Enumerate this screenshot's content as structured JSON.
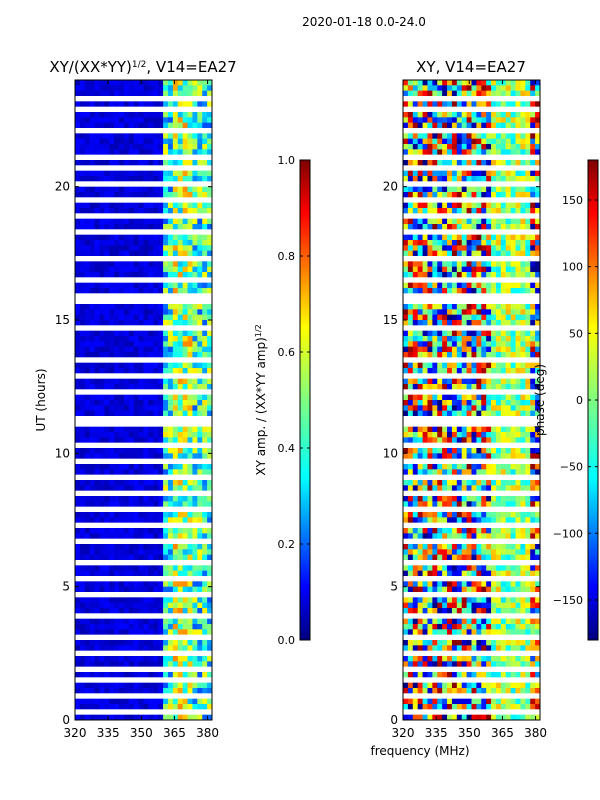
{
  "figure": {
    "suptitle": "2020-01-18 0.0-24.0",
    "xlabel": "frequency (MHz)",
    "colors": [
      "#00007f",
      "#0000ff",
      "#0080ff",
      "#00ffff",
      "#80ff80",
      "#ffff00",
      "#ff8000",
      "#ff0000",
      "#7f0000"
    ]
  },
  "chart_data": [
    {
      "type": "heatmap",
      "title_main": "XY/(XX*YY)",
      "title_sup": "1/2",
      "title_tail": ", V14=EA27",
      "title": "XY/(XX*YY)^1/2, V14=EA27",
      "xlabel": "frequency (MHz)",
      "ylabel": "UT (hours)",
      "xlim": [
        320,
        382
      ],
      "ylim": [
        0,
        24
      ],
      "xticks": [
        "320",
        "335",
        "350",
        "365",
        "380"
      ],
      "yticks": [
        "0",
        "5",
        "10",
        "15",
        "20"
      ],
      "xtick_values": [
        320,
        335,
        350,
        365,
        380
      ],
      "ytick_values": [
        0,
        5,
        10,
        15,
        20
      ],
      "colorbar": {
        "label_main": "XY amp. / (XX*YY amp)",
        "label_sup": "1/2",
        "range": [
          0.0,
          1.0
        ],
        "ticks": [
          "0.0",
          "0.2",
          "0.4",
          "0.6",
          "0.8",
          "1.0"
        ],
        "tick_values": [
          0.0,
          0.2,
          0.4,
          0.6,
          0.8,
          1.0
        ]
      }
    },
    {
      "type": "heatmap",
      "title": "XY, V14=EA27",
      "xlabel": "frequency (MHz)",
      "ylabel": "",
      "xlim": [
        320,
        382
      ],
      "ylim": [
        0,
        24
      ],
      "xticks": [
        "320",
        "335",
        "350",
        "365",
        "380"
      ],
      "yticks": [
        "0",
        "5",
        "10",
        "15",
        "20"
      ],
      "xtick_values": [
        320,
        335,
        350,
        365,
        380
      ],
      "ytick_values": [
        0,
        5,
        10,
        15,
        20
      ],
      "colorbar": {
        "label": "phase (deg)",
        "range": [
          -180,
          180
        ],
        "ticks": [
          "−150",
          "−100",
          "−50",
          "0",
          "50",
          "100",
          "150"
        ],
        "tick_values": [
          -150,
          -100,
          -50,
          0,
          50,
          100,
          150
        ]
      }
    }
  ]
}
